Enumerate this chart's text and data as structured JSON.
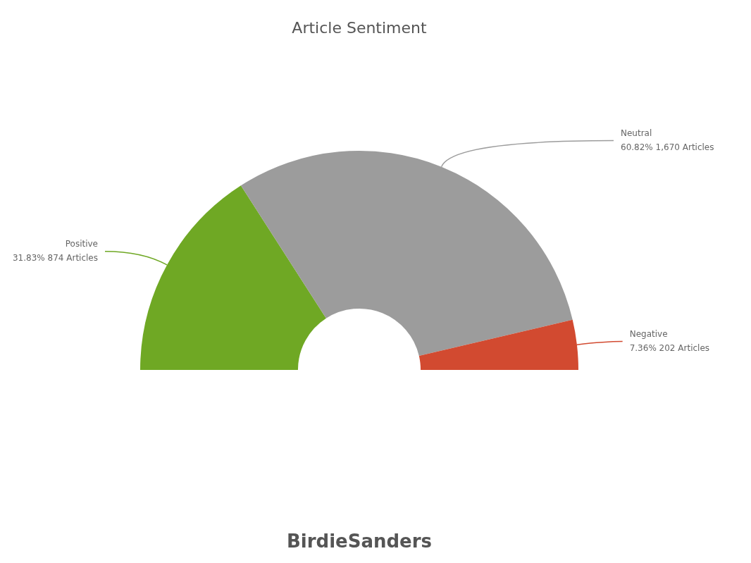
{
  "chart_data": {
    "type": "donut",
    "title": "Article Sentiment",
    "categories": [
      "Positive",
      "Neutral",
      "Negative"
    ],
    "values": [
      874,
      1670,
      202
    ],
    "value_labels": [
      "31.83% 874 Articles",
      "60.82% 1,670 Articles",
      "7.36% 202 Articles"
    ],
    "colors": [
      "#6fa824",
      "#9c9c9c",
      "#d24a30"
    ],
    "annotations": [
      "BirdieSanders"
    ]
  }
}
